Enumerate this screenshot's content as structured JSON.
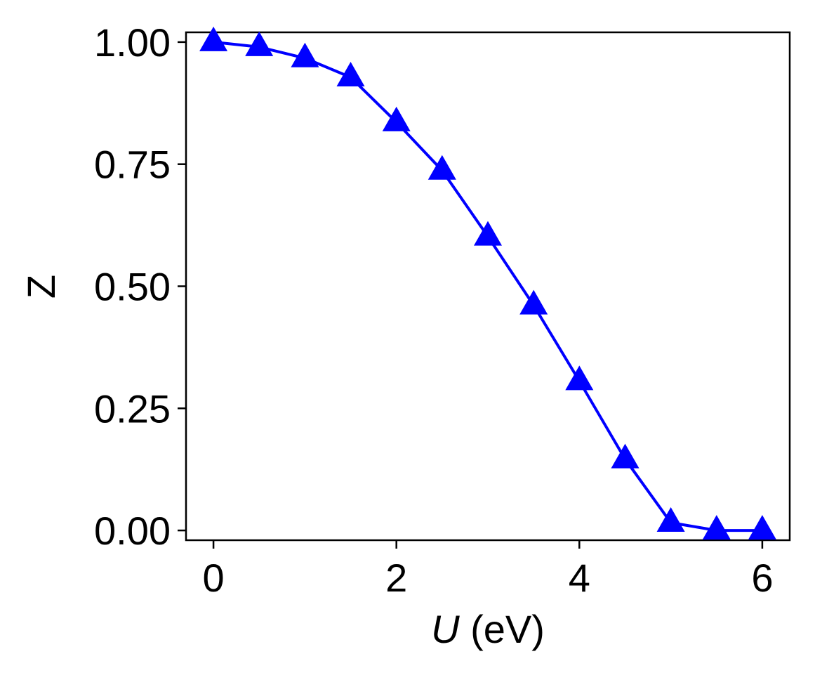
{
  "chart_data": {
    "type": "line",
    "title": "",
    "xlabel": {
      "var": "U",
      "unit": " (eV)"
    },
    "ylabel": "Z",
    "xlim": [
      -0.3,
      6.3
    ],
    "ylim": [
      -0.02,
      1.02
    ],
    "xticks": [
      0,
      2,
      4,
      6
    ],
    "xtick_labels": [
      "0",
      "2",
      "4",
      "6"
    ],
    "yticks": [
      0.0,
      0.25,
      0.5,
      0.75,
      1.0
    ],
    "ytick_labels": [
      "0.00",
      "0.25",
      "0.50",
      "0.75",
      "1.00"
    ],
    "grid": false,
    "legend": "none",
    "series": [
      {
        "color": "#0000ff",
        "marker": "triangle-up",
        "x": [
          0,
          0.5,
          1.0,
          1.5,
          2.0,
          2.5,
          3.0,
          3.5,
          4.0,
          4.5,
          5.0,
          5.5,
          6.0
        ],
        "y": [
          1.0,
          0.99,
          0.967,
          0.928,
          0.836,
          0.737,
          0.602,
          0.461,
          0.306,
          0.146,
          0.016,
          0.0,
          0.0
        ]
      }
    ]
  }
}
